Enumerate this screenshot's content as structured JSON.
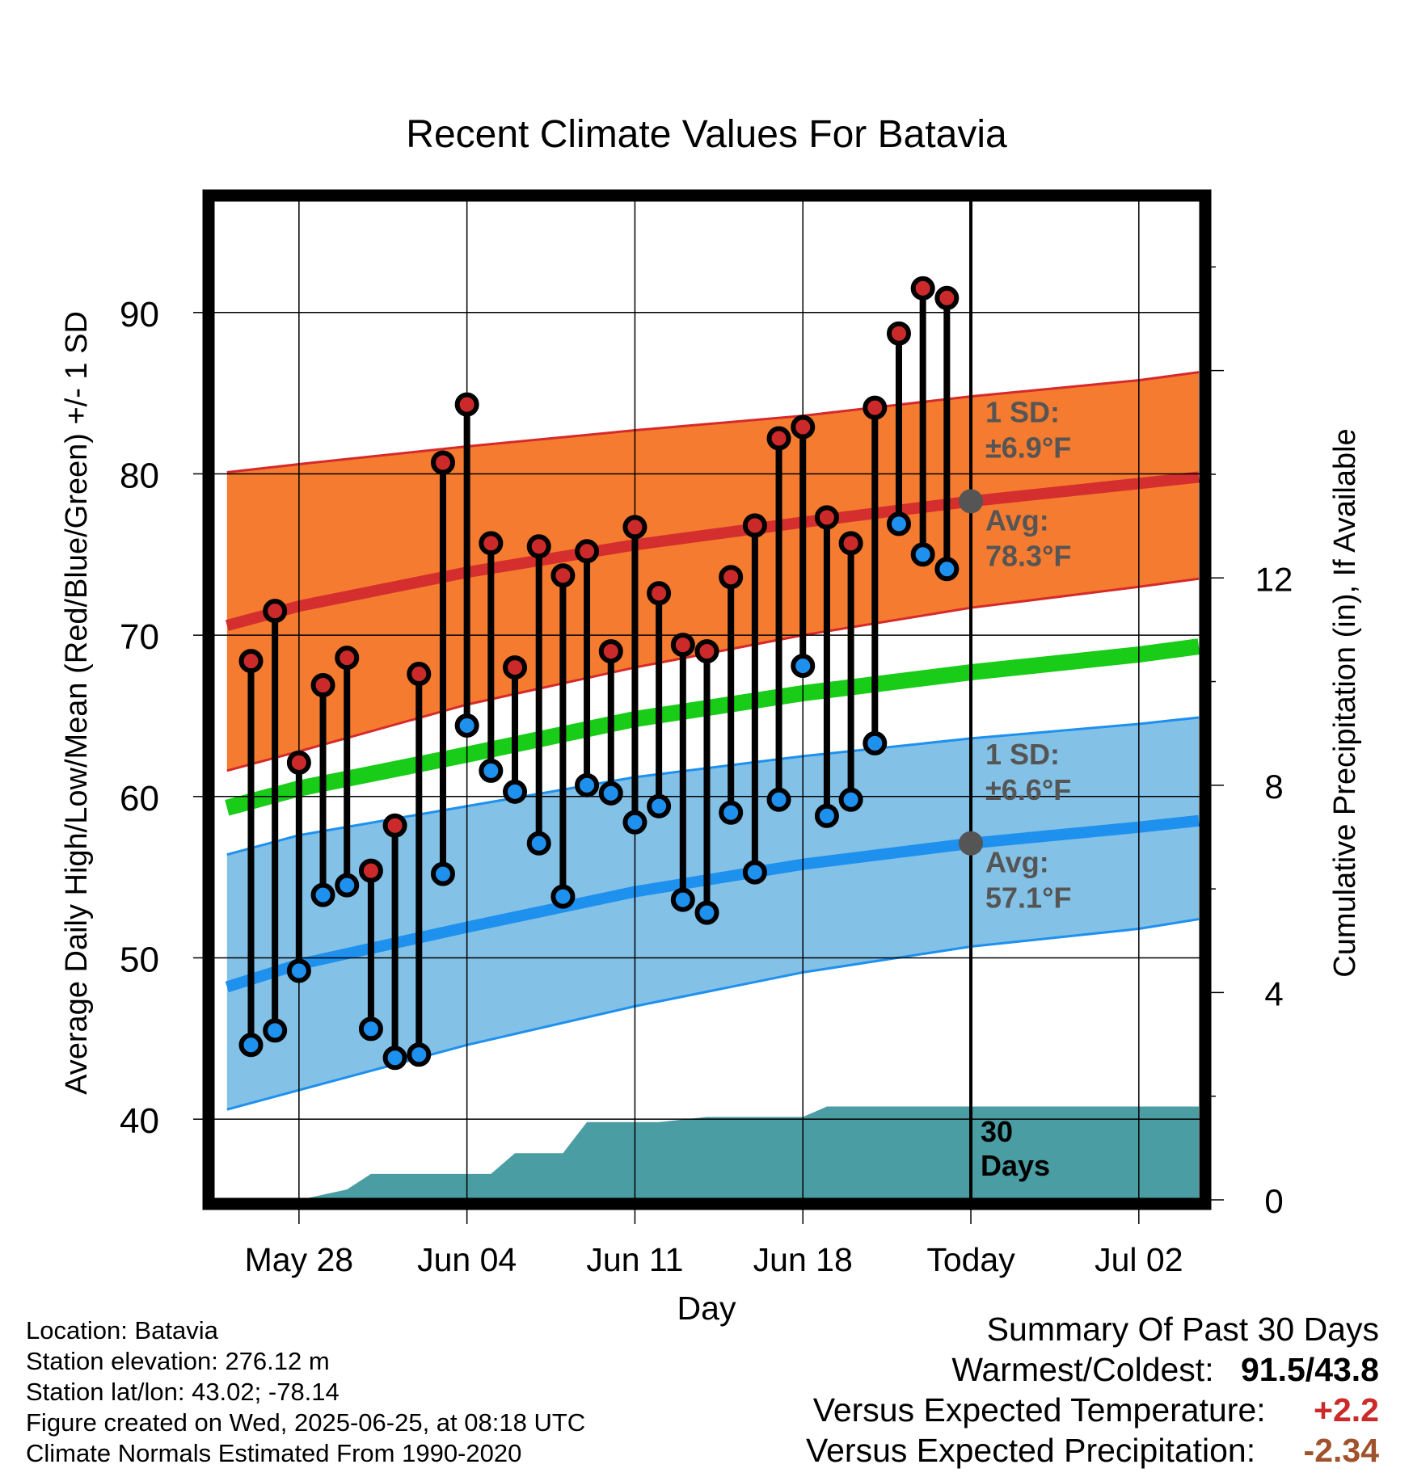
{
  "chart_data": {
    "type": "line",
    "title": "Recent Climate Values For Batavia",
    "xlabel": "Day",
    "ylabel": "Average Daily High/Low/Mean (Red/Blue/Green) +/- 1 SD",
    "y2label": "Cumulative Precipitation (in), If Available",
    "ylim": [
      35,
      97
    ],
    "y2lim": [
      0,
      19.3
    ],
    "xlim": [
      -3.6,
      37.6
    ],
    "x_ticks": [
      {
        "x": 0,
        "label": "May 28"
      },
      {
        "x": 7,
        "label": "Jun 04"
      },
      {
        "x": 14,
        "label": "Jun 11"
      },
      {
        "x": 21,
        "label": "Jun 18"
      },
      {
        "x": 28,
        "label": "Today"
      },
      {
        "x": 35,
        "label": "Jul 02"
      }
    ],
    "y_ticks": [
      40,
      50,
      60,
      70,
      80,
      90
    ],
    "y2_ticks": [
      0,
      4,
      8,
      12
    ],
    "grid": true,
    "today_x": 28,
    "days_label": [
      "30",
      "Days"
    ],
    "normals": {
      "x": [
        -3,
        0,
        7,
        14,
        21,
        28,
        35,
        37.5
      ],
      "high_avg": [
        70.6,
        71.8,
        73.9,
        75.6,
        77.0,
        78.3,
        79.4,
        79.8
      ],
      "high_upper": [
        80.1,
        80.6,
        81.7,
        82.7,
        83.6,
        84.8,
        85.8,
        86.3
      ],
      "high_lower": [
        61.6,
        62.8,
        65.7,
        68.0,
        70.0,
        71.7,
        73.0,
        73.5
      ],
      "mean_avg": [
        59.3,
        60.5,
        62.6,
        64.8,
        66.4,
        67.7,
        68.8,
        69.3
      ],
      "low_avg": [
        48.2,
        49.6,
        51.9,
        54.1,
        55.8,
        57.1,
        58.1,
        58.5
      ],
      "low_upper": [
        56.4,
        57.6,
        59.4,
        61.2,
        62.5,
        63.6,
        64.5,
        64.9
      ],
      "low_lower": [
        40.6,
        41.8,
        44.6,
        47.0,
        49.1,
        50.7,
        51.8,
        52.4
      ]
    },
    "sd_labels": {
      "high": {
        "sd": [
          "1 SD:",
          "±6.9°F"
        ],
        "avg": [
          "Avg:",
          "78.3°F"
        ],
        "dot_value": 78.3
      },
      "low": {
        "sd": [
          "1 SD:",
          "±6.6°F"
        ],
        "avg": [
          "Avg:",
          "57.1°F"
        ],
        "dot_value": 57.1
      }
    },
    "series": [
      {
        "name": "High",
        "color": "#cc2a2a",
        "x": [
          -2,
          -1,
          0,
          1,
          2,
          3,
          4,
          5,
          6,
          7,
          8,
          9,
          10,
          11,
          12,
          13,
          14,
          15,
          16,
          17,
          18,
          19,
          20,
          21,
          22,
          23,
          24,
          25,
          26,
          27
        ],
        "values": [
          68.4,
          71.5,
          62.1,
          66.9,
          68.6,
          55.4,
          58.2,
          67.6,
          80.7,
          84.3,
          75.7,
          68.0,
          75.5,
          73.7,
          75.2,
          69.0,
          76.7,
          72.6,
          69.4,
          69.0,
          73.6,
          76.8,
          82.2,
          82.9,
          77.3,
          75.7,
          84.1,
          88.7,
          91.5,
          90.9
        ]
      },
      {
        "name": "Low",
        "color": "#1e90ee",
        "x": [
          -2,
          -1,
          0,
          1,
          2,
          3,
          4,
          5,
          6,
          7,
          8,
          9,
          10,
          11,
          12,
          13,
          14,
          15,
          16,
          17,
          18,
          19,
          20,
          21,
          22,
          23,
          24,
          25,
          26,
          27
        ],
        "values": [
          44.6,
          45.5,
          49.2,
          53.9,
          54.5,
          45.6,
          43.8,
          44.0,
          55.2,
          64.4,
          61.6,
          60.3,
          57.1,
          53.8,
          60.7,
          60.2,
          58.4,
          59.4,
          53.6,
          52.8,
          59.0,
          55.3,
          59.8,
          68.1,
          58.8,
          59.8,
          63.3,
          76.9,
          75.0,
          74.1
        ]
      },
      {
        "name": "Precipitation",
        "color": "#4a9da3",
        "x": [
          -3,
          0,
          1,
          2,
          3,
          4,
          5,
          6,
          7,
          8,
          9,
          10,
          11,
          12,
          13,
          14,
          15,
          16,
          17,
          18,
          19,
          20,
          21,
          22,
          23,
          24,
          25,
          26,
          27,
          28,
          37.5
        ],
        "values": [
          0,
          0,
          0.1,
          0.2,
          0.5,
          0.5,
          0.5,
          0.5,
          0.5,
          0.5,
          0.9,
          0.9,
          0.9,
          1.5,
          1.5,
          1.5,
          1.5,
          1.55,
          1.6,
          1.6,
          1.6,
          1.6,
          1.6,
          1.8,
          1.8,
          1.8,
          1.8,
          1.8,
          1.8,
          1.8,
          1.8
        ]
      }
    ]
  },
  "footer": {
    "location": "Location: Batavia",
    "elevation": "Station elevation: 276.12 m",
    "latlon": "Station lat/lon: 43.02; -78.14",
    "created": "Figure created on Wed, 2025-06-25, at 08:18 UTC",
    "normals": "Climate Normals Estimated From 1990-2020"
  },
  "summary": {
    "title": "Summary Of Past 30 Days",
    "warmest_label": "Warmest/Coldest:",
    "warmest_value": "91.5/43.8",
    "temp_label": "Versus Expected Temperature:",
    "temp_value": "+2.2",
    "temp_color": "#cc2a2a",
    "precip_label": "Versus Expected Precipitation:",
    "precip_value": "-2.34",
    "precip_color": "#a0522d"
  }
}
